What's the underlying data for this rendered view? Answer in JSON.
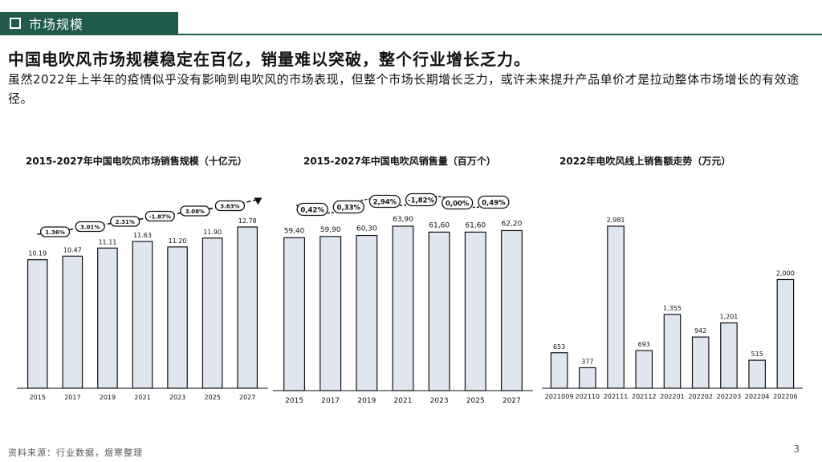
{
  "section": {
    "label": "市场规模"
  },
  "headline": "中国电吹风市场规模稳定在百亿，销量难以突破，整个行业增长乏力。",
  "subtext": "虽然2022年上半年的疫情似乎没有影响到电吹风的市场表现，但整个市场长期增长乏力，或许未来提升产品单价才是拉动整体市场增长的有效途径。",
  "footer": {
    "source": "资料来源：行业数据，煜寒整理",
    "page": "3"
  },
  "colors": {
    "accent": "#1f5a4a",
    "bar_fill": "#dfe6ef",
    "bar_stroke": "#111111"
  },
  "chart_data": [
    {
      "type": "bar",
      "title": "2015-2027年中国电吹风市场销售规模（十亿元）",
      "categories": [
        "2015",
        "2017",
        "2019",
        "2021",
        "2023",
        "2025",
        "2027"
      ],
      "values": [
        10.19,
        10.47,
        11.11,
        11.63,
        11.2,
        11.9,
        12.78
      ],
      "value_labels": [
        "10.19",
        "10.47",
        "11.11",
        "11.63",
        "11.20",
        "11.90",
        "12.78"
      ],
      "growth_labels": [
        "1.36%",
        "3.01%",
        "2.31%",
        "-1.87%",
        "3.08%",
        "3.63%"
      ],
      "growth_style": "rising-arrow"
    },
    {
      "type": "bar",
      "title": "2015-2027年中国电吹风销售量（百万个）",
      "categories": [
        "2015",
        "2017",
        "2019",
        "2021",
        "2023",
        "2025",
        "2027"
      ],
      "values": [
        59.4,
        59.9,
        60.3,
        63.9,
        61.6,
        61.6,
        62.2
      ],
      "value_labels": [
        "59,40",
        "59,90",
        "60,30",
        "63,90",
        "61,60",
        "61,60",
        "62,20"
      ],
      "growth_labels": [
        "0,42%",
        "0,33%",
        "2,94%",
        "-1,82%",
        "0,00%",
        "0,49%"
      ],
      "growth_style": "wave"
    },
    {
      "type": "bar",
      "title": "2022年电吹风线上销售额走势（万元）",
      "categories": [
        "2021009",
        "202110",
        "202111",
        "202112",
        "202201",
        "202202",
        "202203",
        "202204",
        "202206"
      ],
      "values": [
        653,
        377,
        2981,
        693,
        1355,
        942,
        1201,
        515,
        2000
      ],
      "value_labels": [
        "653",
        "377",
        "2,981",
        "693",
        "1,355",
        "942",
        "1,201",
        "515",
        "2,000"
      ]
    }
  ]
}
